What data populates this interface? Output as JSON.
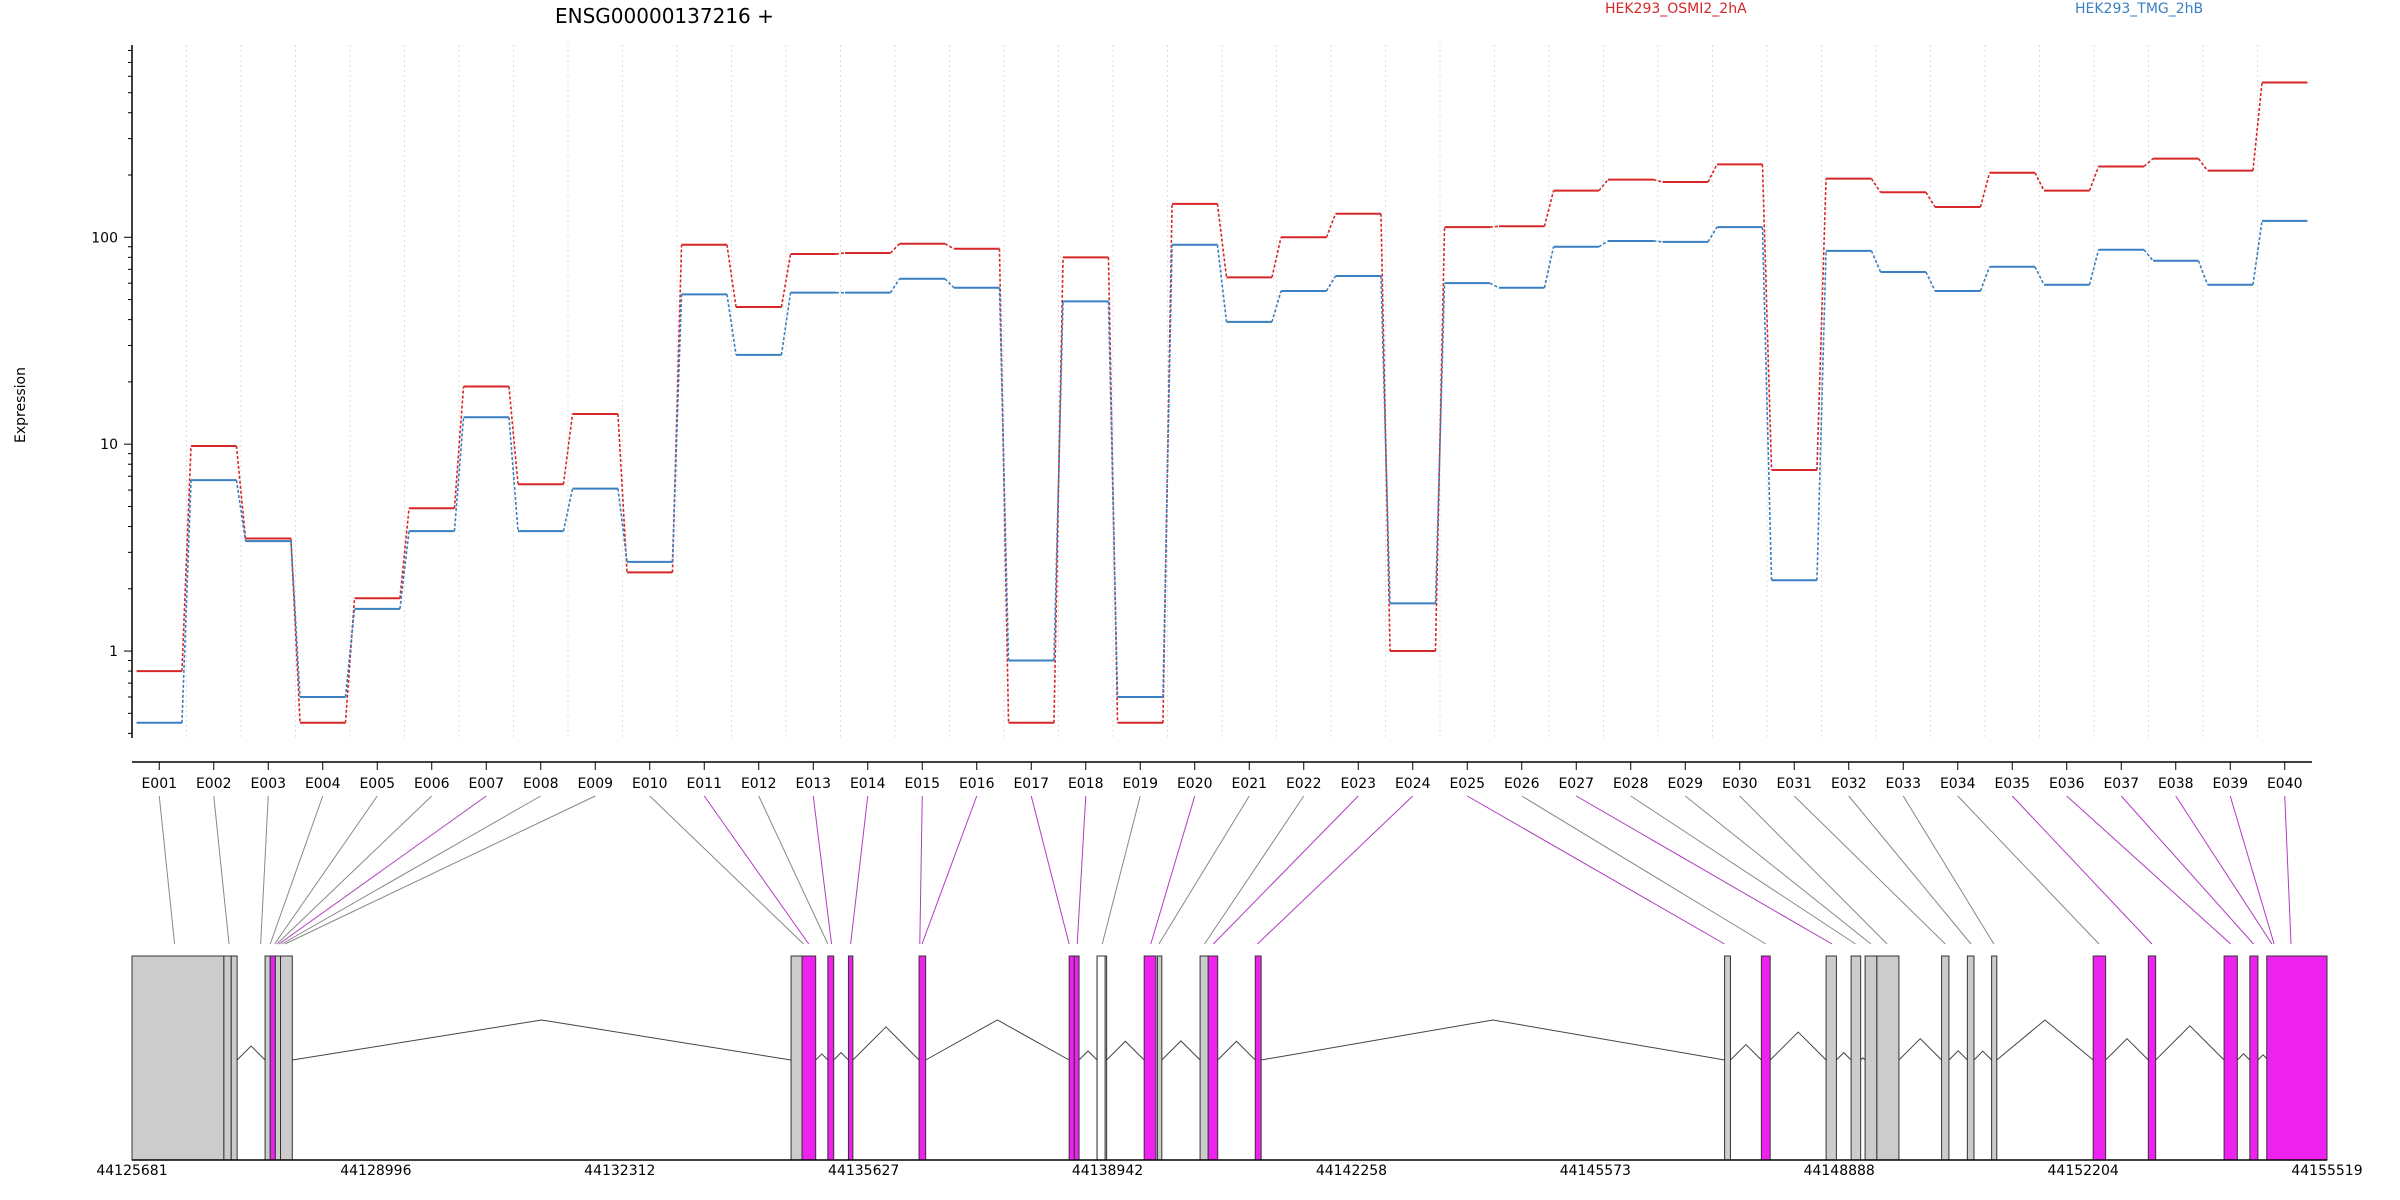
{
  "chart_data": {
    "type": "line",
    "title": "ENSG00000137216 +",
    "xlabel": "",
    "ylabel": "Expression",
    "y_scale": "log",
    "ylim": [
      0.38,
      850
    ],
    "y_ticks": [
      "1",
      "10",
      "100"
    ],
    "grid": "vertical dotted lines at exon boundaries",
    "legend_position": "top",
    "series": [
      {
        "name": "HEK293_OSMI2_2hA",
        "color": "#d62728",
        "values": [
          0.8,
          9.8,
          3.5,
          0.45,
          1.8,
          4.9,
          19,
          6.4,
          14,
          2.4,
          92,
          46,
          83,
          84,
          93,
          88,
          0.45,
          80,
          0.45,
          145,
          64,
          100,
          130,
          1.0,
          112,
          113,
          168,
          190,
          185,
          225,
          7.5,
          192,
          165,
          140,
          205,
          168,
          220,
          240,
          210,
          560
        ]
      },
      {
        "name": "HEK293_TMG_2hB",
        "color": "#3a7fc1",
        "values": [
          0.45,
          6.7,
          3.4,
          0.6,
          1.6,
          3.8,
          13.5,
          3.8,
          6.1,
          2.7,
          53,
          27,
          54,
          54,
          63,
          57,
          0.9,
          49,
          0.6,
          92,
          39,
          55,
          65,
          1.7,
          60,
          57,
          90,
          96,
          95,
          112,
          2.2,
          86,
          68,
          55,
          72,
          59,
          87,
          77,
          59,
          120
        ]
      }
    ],
    "categories": [
      "E001",
      "E002",
      "E003",
      "E004",
      "E005",
      "E006",
      "E007",
      "E008",
      "E009",
      "E010",
      "E011",
      "E012",
      "E013",
      "E014",
      "E015",
      "E016",
      "E017",
      "E018",
      "E019",
      "E020",
      "E021",
      "E022",
      "E023",
      "E024",
      "E025",
      "E026",
      "E027",
      "E028",
      "E029",
      "E030",
      "E031",
      "E032",
      "E033",
      "E034",
      "E035",
      "E036",
      "E037",
      "E038",
      "E039",
      "E040"
    ],
    "exon_differential": [
      false,
      false,
      false,
      false,
      false,
      false,
      true,
      false,
      false,
      false,
      true,
      false,
      true,
      true,
      true,
      true,
      true,
      true,
      false,
      true,
      false,
      false,
      true,
      true,
      true,
      false,
      true,
      false,
      false,
      false,
      false,
      false,
      false,
      false,
      true,
      true,
      true,
      true,
      true,
      true
    ],
    "gene_model": {
      "genomic_range": [
        44125681,
        44155519
      ],
      "genomic_ticks": [
        "44125681",
        "44128996",
        "44132312",
        "44135627",
        "44138942",
        "44142258",
        "44145573",
        "44148888",
        "44152204",
        "44155519"
      ],
      "exons": [
        {
          "start": 44125681,
          "end": 44126930,
          "differential": false
        },
        {
          "start": 44126930,
          "end": 44127030,
          "differential": false
        },
        {
          "start": 44127030,
          "end": 44127110,
          "differential": false
        },
        {
          "start": 44127490,
          "end": 44127560,
          "differential": false
        },
        {
          "start": 44127560,
          "end": 44127630,
          "differential": true
        },
        {
          "start": 44127630,
          "end": 44127700,
          "differential": false
        },
        {
          "start": 44127700,
          "end": 44127860,
          "differential": false
        },
        {
          "start": 44134640,
          "end": 44134790,
          "differential": false
        },
        {
          "start": 44134790,
          "end": 44134975,
          "differential": true
        },
        {
          "start": 44135140,
          "end": 44135220,
          "differential": true
        },
        {
          "start": 44135420,
          "end": 44135480,
          "differential": true
        },
        {
          "start": 44136380,
          "end": 44136470,
          "differential": true
        },
        {
          "start": 44138420,
          "end": 44138490,
          "differential": true
        },
        {
          "start": 44138490,
          "end": 44138555,
          "differential": true
        },
        {
          "start": 44138800,
          "end": 44138930,
          "differential": false
        },
        {
          "start": 44139440,
          "end": 44139600,
          "differential": true
        },
        {
          "start": 44139620,
          "end": 44139680,
          "differential": false
        },
        {
          "start": 44140200,
          "end": 44140310,
          "differential": false
        },
        {
          "start": 44140310,
          "end": 44140440,
          "differential": true
        },
        {
          "start": 44140950,
          "end": 44141030,
          "differential": true
        },
        {
          "start": 44147330,
          "end": 44147410,
          "differential": false
        },
        {
          "start": 44147830,
          "end": 44147950,
          "differential": true
        },
        {
          "start": 44148710,
          "end": 44148850,
          "differential": false
        },
        {
          "start": 44149050,
          "end": 44149180,
          "differential": false
        },
        {
          "start": 44149240,
          "end": 44149400,
          "differential": false
        },
        {
          "start": 44149400,
          "end": 44149700,
          "differential": false
        },
        {
          "start": 44150280,
          "end": 44150380,
          "differential": false
        },
        {
          "start": 44150630,
          "end": 44150720,
          "differential": false
        },
        {
          "start": 44150960,
          "end": 44151030,
          "differential": false
        },
        {
          "start": 44152340,
          "end": 44152510,
          "differential": true
        },
        {
          "start": 44153090,
          "end": 44153190,
          "differential": true
        },
        {
          "start": 44154120,
          "end": 44154300,
          "differential": true
        },
        {
          "start": 44154470,
          "end": 44154580,
          "differential": true
        },
        {
          "start": 44154720,
          "end": 44154810,
          "differential": true
        },
        {
          "start": 44154700,
          "end": 44155519,
          "differential": true
        }
      ],
      "exon_anchor_positions": [
        44126260,
        44127000,
        44127430,
        44127560,
        44127620,
        44127650,
        44127680,
        44127720,
        44127760,
        44134810,
        44134880,
        44135140,
        44135190,
        44135450,
        44136390,
        44136420,
        44138420,
        44138530,
        44138870,
        44139530,
        44139640,
        44140260,
        44140380,
        44140980,
        44147330,
        44147890,
        44148790,
        44149110,
        44149320,
        44149540,
        44150330,
        44150680,
        44150990,
        44152420,
        44153140,
        44154210,
        44154520,
        44154770,
        44154800,
        44155030
      ]
    }
  },
  "colors": {
    "series_a": "#d62728",
    "series_b": "#3a7fc1",
    "differential_exon": "#ee22ee",
    "constitutive_exon": "#cccccc",
    "differential_link": "#b03cc0",
    "plain_link": "#888888"
  }
}
